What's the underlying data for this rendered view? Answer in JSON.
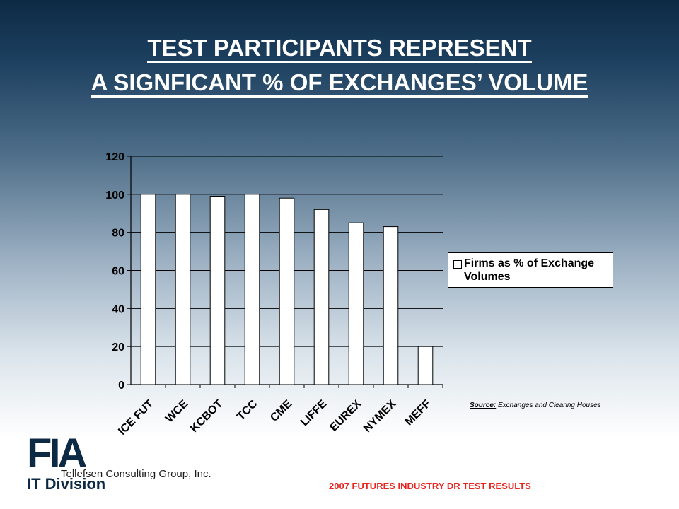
{
  "title_line1": "TEST PARTICIPANTS REPRESENT",
  "title_line2": "A SIGNFICANT % OF EXCHANGES’ VOLUME",
  "chart_data": {
    "type": "bar",
    "categories": [
      "ICE FUT",
      "WCE",
      "KCBOT",
      "TCC",
      "CME",
      "LIFFE",
      "EUREX",
      "NYMEX",
      "MEFF"
    ],
    "series": [
      {
        "name": "Firms as % of Exchange Volumes",
        "values": [
          100,
          100,
          99,
          100,
          98,
          92,
          85,
          83,
          20
        ]
      }
    ],
    "yticks": [
      0,
      20,
      40,
      60,
      80,
      100,
      120
    ],
    "ylim": [
      0,
      120
    ],
    "grid": true,
    "legend_position": "right",
    "bar_color": "#ffffff"
  },
  "legend": {
    "label": "Firms as % of Exchange Volumes"
  },
  "source": {
    "label": "Source:",
    "text": "Exchanges and Clearing Houses"
  },
  "logo": {
    "top": "FIA",
    "bottom": "IT Division"
  },
  "consulting": "Tellefsen Consulting Group, Inc.",
  "footer": "2007 FUTURES INDUSTRY DR TEST RESULTS"
}
